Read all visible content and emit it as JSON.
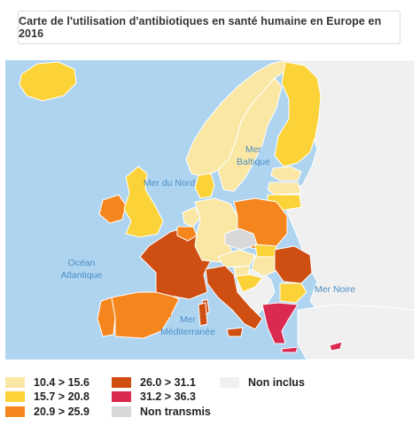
{
  "title": "Carte de l'utilisation d'antibiotiques en santé humaine en Europe en 2016",
  "sea_labels": {
    "baltic_line1": "Mer",
    "baltic_line2": "Baltique",
    "north_sea": "Mer du Nord",
    "atlantic_line1": "Océan",
    "atlantic_line2": "Atlantique",
    "black_sea": "Mer Noire",
    "med_line1": "Mer",
    "med_line2": "Méditerranée"
  },
  "colors": {
    "sea": "#aed4f0",
    "c1": "#fae7a4",
    "c2": "#fbd338",
    "c3": "#f5861e",
    "c4": "#cf4f12",
    "c5": "#da2a4f",
    "not_transmitted": "#d8d8d8",
    "not_included": "#f0f0f0"
  },
  "legend": [
    {
      "label": "10.4 > 15.6",
      "color": "#fae7a4"
    },
    {
      "label": "15.7 > 20.8",
      "color": "#fbd338"
    },
    {
      "label": "20.9 > 25.9",
      "color": "#f5861e"
    },
    {
      "label": "26.0 > 31.1",
      "color": "#cf4f12"
    },
    {
      "label": "31.2 > 36.3",
      "color": "#da2a4f"
    },
    {
      "label": "Non transmis",
      "color": "#d8d8d8"
    },
    {
      "label": "Non inclus",
      "color": "#f0f0f0"
    }
  ]
}
